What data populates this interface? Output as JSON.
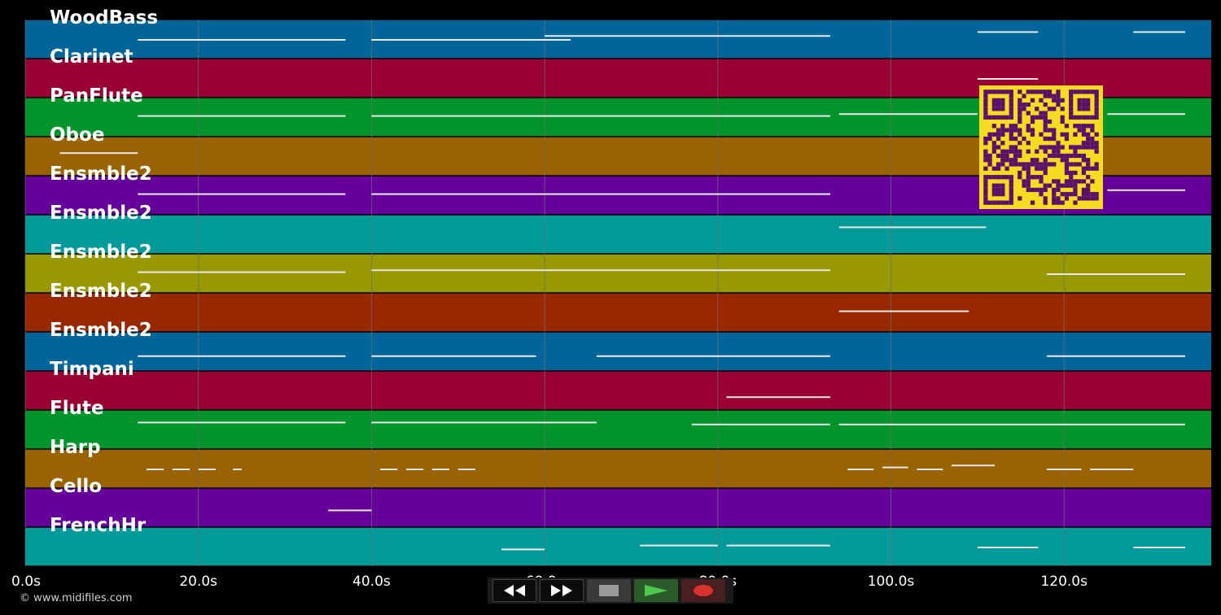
{
  "colors": {
    "background": "#000000",
    "grid": "#6f6f6f",
    "note": "#e8e8e8",
    "qr_fg": "#5a0f6a",
    "qr_bg": "#f5dc21"
  },
  "tracks": [
    {
      "name": "WoodBass",
      "color": "#00669a"
    },
    {
      "name": "Clarinet",
      "color": "#980035"
    },
    {
      "name": "PanFlute",
      "color": "#00952a"
    },
    {
      "name": "Oboe",
      "color": "#986300"
    },
    {
      "name": "Ensmble2",
      "color": "#65009a"
    },
    {
      "name": "Ensmble2",
      "color": "#009a9a"
    },
    {
      "name": "Ensmble2",
      "color": "#989800"
    },
    {
      "name": "Ensmble2",
      "color": "#972800"
    },
    {
      "name": "Ensmble2",
      "color": "#00669a"
    },
    {
      "name": "Timpani",
      "color": "#980035"
    },
    {
      "name": "Flute",
      "color": "#00952a"
    },
    {
      "name": "Harp",
      "color": "#986300"
    },
    {
      "name": "Cello",
      "color": "#65009a"
    },
    {
      "name": "FrenchHr",
      "color": "#009a9a"
    }
  ],
  "timeline": {
    "ticks": [
      "0.0s",
      "20.0s",
      "40.0s",
      "60.0s",
      "80.0s",
      "100.0s",
      "120.0s"
    ],
    "tick_seconds": [
      0,
      20,
      40,
      60,
      80,
      100,
      120
    ],
    "max_seconds": 137
  },
  "controls": {
    "rewind": "rewind-icon",
    "fast_forward": "fast-forward-icon",
    "stop": "stop-icon",
    "play": "play-icon",
    "record": "record-icon"
  },
  "footer": {
    "credit": "© www.midifiles.com"
  },
  "notes": [
    [
      0,
      13,
      37,
      0.5
    ],
    [
      0,
      40,
      63,
      0.5
    ],
    [
      0,
      60,
      93,
      0.4
    ],
    [
      0,
      110,
      117,
      0.3
    ],
    [
      0,
      128,
      134,
      0.3
    ],
    [
      1,
      110,
      117,
      0.5
    ],
    [
      2,
      13,
      37,
      0.45
    ],
    [
      2,
      40,
      93,
      0.45
    ],
    [
      2,
      94,
      110,
      0.4
    ],
    [
      2,
      125,
      134,
      0.4
    ],
    [
      3,
      4,
      13,
      0.4
    ],
    [
      4,
      13,
      37,
      0.45
    ],
    [
      4,
      40,
      93,
      0.45
    ],
    [
      4,
      125,
      134,
      0.35
    ],
    [
      5,
      94,
      111,
      0.3
    ],
    [
      6,
      13,
      37,
      0.45
    ],
    [
      6,
      40,
      93,
      0.4
    ],
    [
      6,
      118,
      134,
      0.5
    ],
    [
      7,
      94,
      109,
      0.45
    ],
    [
      8,
      13,
      37,
      0.6
    ],
    [
      8,
      40,
      59,
      0.6
    ],
    [
      8,
      66,
      93,
      0.6
    ],
    [
      8,
      118,
      134,
      0.6
    ],
    [
      9,
      81,
      93,
      0.65
    ],
    [
      10,
      13,
      37,
      0.3
    ],
    [
      10,
      40,
      66,
      0.3
    ],
    [
      10,
      77,
      93,
      0.35
    ],
    [
      10,
      94,
      134,
      0.35
    ],
    [
      11,
      14,
      16,
      0.5
    ],
    [
      11,
      17,
      19,
      0.5
    ],
    [
      11,
      20,
      22,
      0.5
    ],
    [
      11,
      24,
      25,
      0.5
    ],
    [
      11,
      41,
      43,
      0.5
    ],
    [
      11,
      44,
      46,
      0.5
    ],
    [
      11,
      47,
      49,
      0.5
    ],
    [
      11,
      50,
      52,
      0.5
    ],
    [
      11,
      95,
      98,
      0.5
    ],
    [
      11,
      99,
      102,
      0.45
    ],
    [
      11,
      103,
      106,
      0.5
    ],
    [
      11,
      107,
      112,
      0.4
    ],
    [
      11,
      118,
      122,
      0.5
    ],
    [
      11,
      123,
      128,
      0.5
    ],
    [
      12,
      35,
      40,
      0.55
    ],
    [
      13,
      55,
      60,
      0.55
    ],
    [
      13,
      71,
      80,
      0.45
    ],
    [
      13,
      81,
      93,
      0.45
    ],
    [
      13,
      110,
      117,
      0.5
    ],
    [
      13,
      128,
      134,
      0.5
    ]
  ]
}
